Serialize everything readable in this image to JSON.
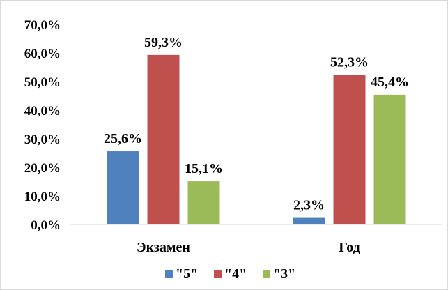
{
  "chart_data": {
    "type": "bar",
    "categories": [
      "Экзамен",
      "Год"
    ],
    "series": [
      {
        "name": "\"5\"",
        "values": [
          25.6,
          2.3
        ],
        "labels": [
          "25,6%",
          "2,3%"
        ],
        "color": "#4f81bd"
      },
      {
        "name": "\"4\"",
        "values": [
          59.3,
          52.3
        ],
        "labels": [
          "59,3%",
          "52,3%"
        ],
        "color": "#c0504d"
      },
      {
        "name": "\"3\"",
        "values": [
          15.1,
          45.4
        ],
        "labels": [
          "15,1%",
          "45,4%"
        ],
        "color": "#9bbb59"
      }
    ],
    "ylim": [
      0,
      70
    ],
    "yticks": [
      {
        "value": 0,
        "label": "0,0%"
      },
      {
        "value": 10,
        "label": "10,0%"
      },
      {
        "value": 20,
        "label": "20,0%"
      },
      {
        "value": 30,
        "label": "30,0%"
      },
      {
        "value": 40,
        "label": "40,0%"
      },
      {
        "value": 50,
        "label": "50,0%"
      },
      {
        "value": 60,
        "label": "60,0%"
      },
      {
        "value": 70,
        "label": "70,0%"
      }
    ],
    "grid": false,
    "legend_position": "bottom",
    "axis_color": "#d9d9d9"
  }
}
